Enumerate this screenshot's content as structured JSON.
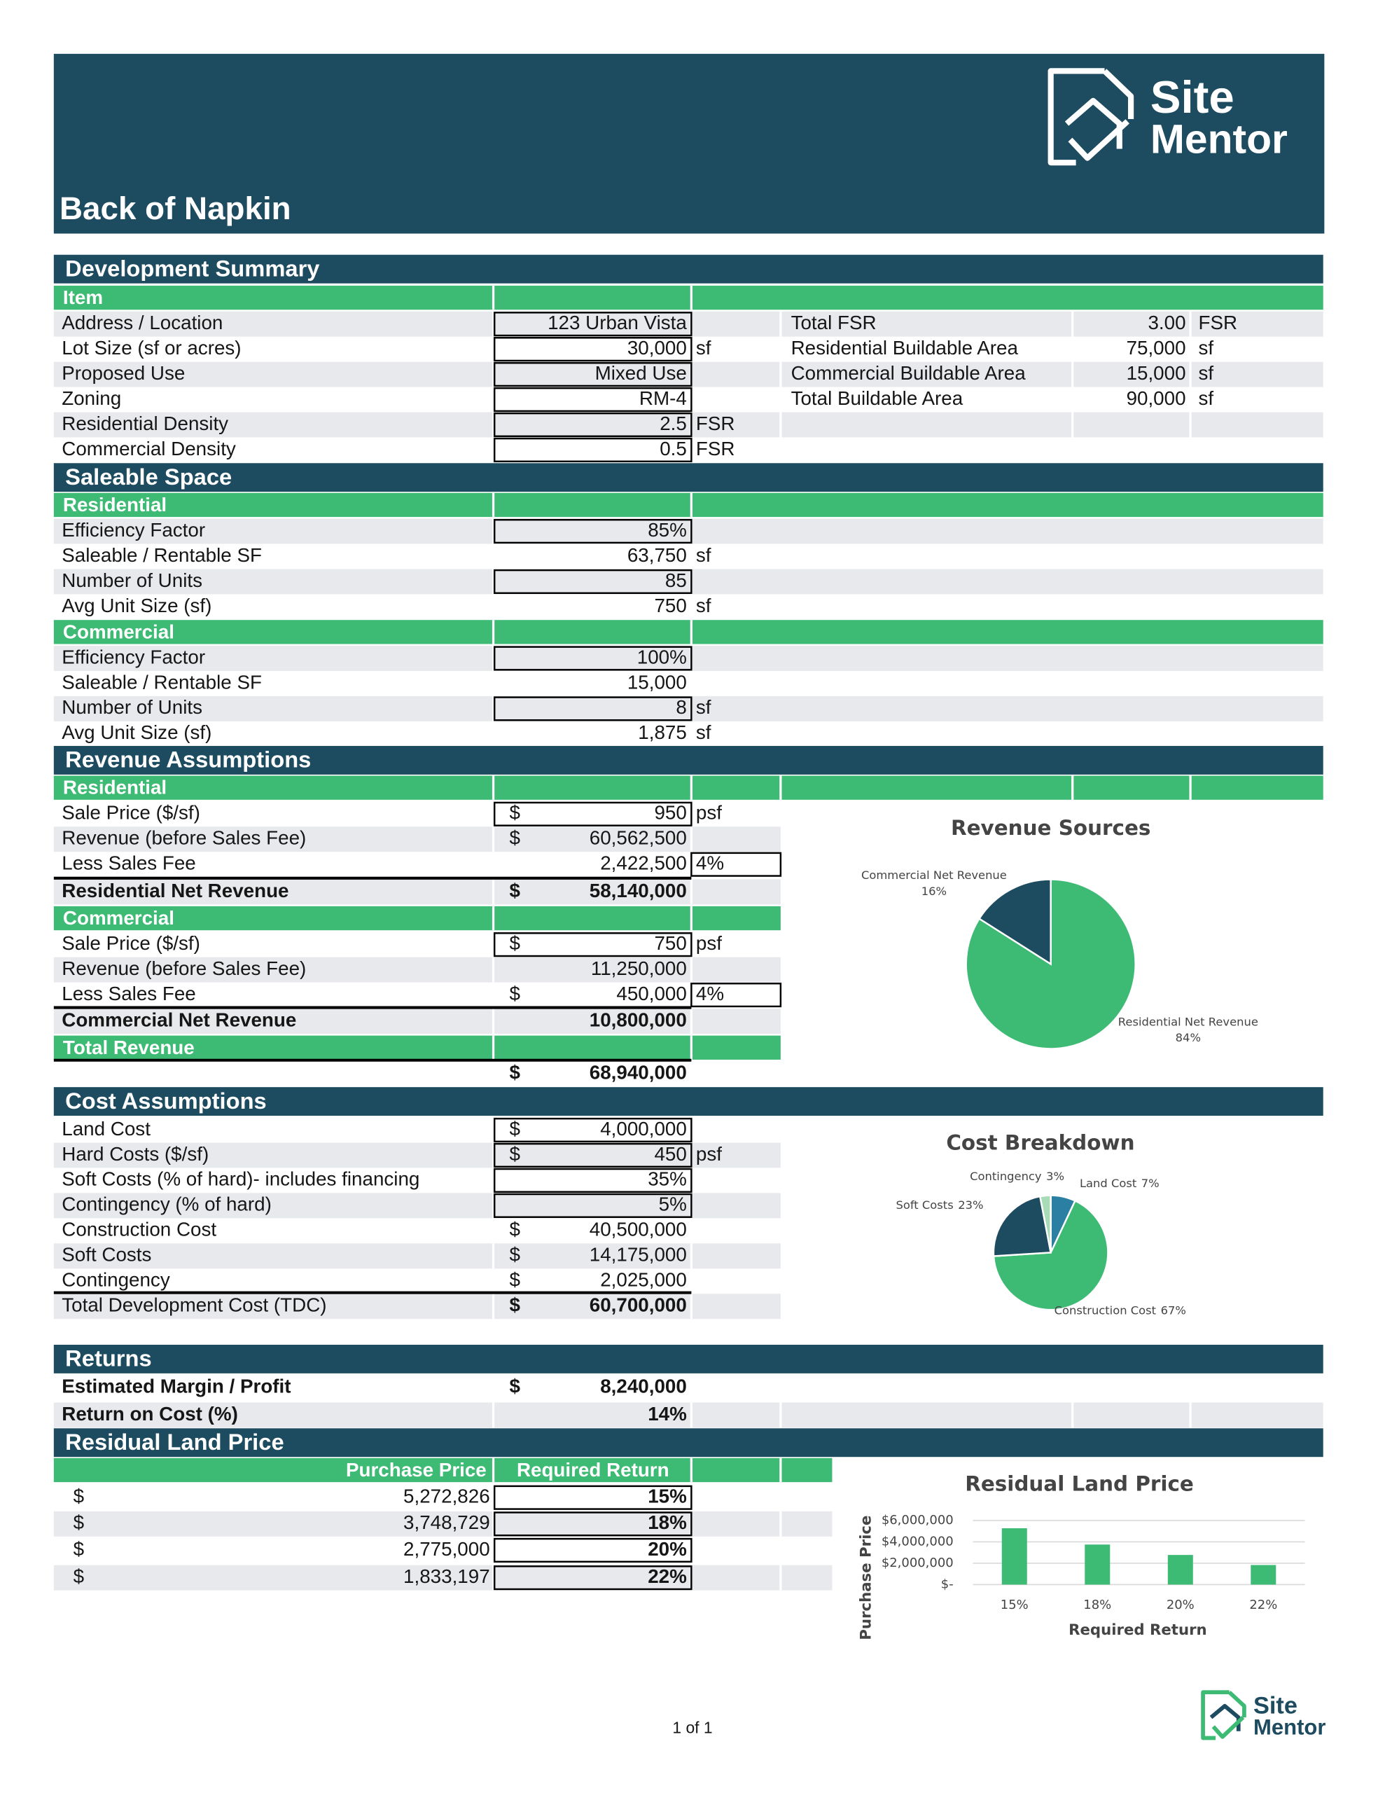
{
  "header": {
    "title": "Back of Napkin",
    "logo": [
      "Site",
      "Mentor"
    ]
  },
  "sections": [
    {
      "title": "Development Summary",
      "groups": [
        {
          "title": "Item",
          "rows": [
            {
              "label": "Address / Location",
              "value": "123 Urban Vista"
            },
            {
              "label": "Lot Size (sf or acres)",
              "value": "30,000",
              "unit": "sf"
            },
            {
              "label": "Proposed Use",
              "value": "Mixed Use"
            },
            {
              "label": "Zoning",
              "value": "RM-4"
            },
            {
              "label": "Residential Density",
              "value": "2.5",
              "unit": "FSR"
            },
            {
              "label": "Commercial Density",
              "value": "0.5",
              "unit": "FSR"
            }
          ]
        }
      ],
      "side": [
        {
          "label": "Total FSR",
          "value": "3.00",
          "unit": "FSR"
        },
        {
          "label": "Residential Buildable Area",
          "value": "75,000",
          "unit": "sf"
        },
        {
          "label": "Commercial Buildable Area",
          "value": "15,000",
          "unit": "sf"
        },
        {
          "label": "Total Buildable Area",
          "value": "90,000",
          "unit": "sf"
        }
      ]
    },
    {
      "title": "Saleable Space",
      "groups": [
        {
          "title": "Residential",
          "rows": [
            {
              "label": "Efficiency Factor",
              "value": "85%"
            },
            {
              "label": "Saleable / Rentable SF",
              "value": "63,750",
              "unit": "sf"
            },
            {
              "label": "Number of Units",
              "value": "85"
            },
            {
              "label": "Avg Unit Size (sf)",
              "value": "750",
              "unit": "sf"
            }
          ]
        },
        {
          "title": "Commercial",
          "rows": [
            {
              "label": "Efficiency Factor",
              "value": "100%"
            },
            {
              "label": "Saleable / Rentable SF",
              "value": "15,000"
            },
            {
              "label": "Number of Units",
              "value": "8",
              "unit": "sf"
            },
            {
              "label": "Avg Unit Size (sf)",
              "value": "1,875",
              "unit": "sf"
            }
          ]
        }
      ]
    },
    {
      "title": "Revenue Assumptions",
      "groups": [
        {
          "title": "Residential",
          "rows": [
            {
              "label": "Sale Price ($/sf)",
              "currency": "$",
              "value": "950",
              "unit": "psf"
            },
            {
              "label": "Revenue (before Sales Fee)",
              "currency": "$",
              "value": "60,562,500"
            },
            {
              "label": "Less Sales Fee",
              "value": "2,422,500",
              "unit": "4%"
            }
          ],
          "total": {
            "label": "Residential Net Revenue",
            "currency": "$",
            "value": "58,140,000"
          }
        },
        {
          "title": "Commercial",
          "rows": [
            {
              "label": "Sale Price ($/sf)",
              "currency": "$",
              "value": "750",
              "unit": "psf"
            },
            {
              "label": "Revenue (before Sales Fee)",
              "value": "11,250,000"
            },
            {
              "label": "Less Sales Fee",
              "currency": "$",
              "value": "450,000",
              "unit": "4%"
            }
          ],
          "total": {
            "label": "Commercial Net Revenue",
            "value": "10,800,000"
          }
        },
        {
          "title": "Total Revenue",
          "total": {
            "currency": "$",
            "value": "68,940,000"
          }
        }
      ]
    },
    {
      "title": "Cost Assumptions",
      "groups": [
        {
          "rows": [
            {
              "label": "Land Cost",
              "currency": "$",
              "value": "4,000,000"
            },
            {
              "label": "Hard Costs ($/sf)",
              "currency": "$",
              "value": "450",
              "unit": "psf"
            },
            {
              "label": "Soft Costs (% of hard)- includes financing",
              "value": "35%"
            },
            {
              "label": "Contingency (% of hard)",
              "value": "5%"
            },
            {
              "label": "Construction Cost",
              "currency": "$",
              "value": "40,500,000"
            },
            {
              "label": "Soft Costs",
              "currency": "$",
              "value": "14,175,000"
            },
            {
              "label": "Contingency",
              "currency": "$",
              "value": "2,025,000"
            }
          ],
          "total": {
            "label": "Total Development Cost (TDC)",
            "currency": "$",
            "value": "60,700,000"
          }
        }
      ]
    },
    {
      "title": "Returns",
      "groups": [
        {
          "rows": [
            {
              "label": "Estimated Margin / Profit",
              "currency": "$",
              "value": "8,240,000"
            },
            {
              "label": "Return on Cost (%)",
              "value": "14%"
            }
          ]
        }
      ]
    },
    {
      "title": "Residual Land Price",
      "table": {
        "columns": [
          "Purchase Price",
          "Required Return"
        ],
        "rows": [
          [
            "$",
            "5,272,826",
            "15%"
          ],
          [
            "$",
            "3,748,729",
            "18%"
          ],
          [
            "$",
            "2,775,000",
            "20%"
          ],
          [
            "$",
            "1,833,197",
            "22%"
          ]
        ]
      }
    }
  ],
  "chart_data": [
    {
      "type": "pie",
      "title": "Revenue Sources",
      "categories": [
        "Residential Net Revenue",
        "Commercial Net Revenue"
      ],
      "values": [
        84,
        16
      ],
      "value_labels": [
        "84%",
        "16%"
      ],
      "colors": [
        "#3dba74",
        "#1d4b5f"
      ]
    },
    {
      "type": "pie",
      "title": "Cost Breakdown",
      "categories": [
        "Land Cost",
        "Construction Cost",
        "Soft Costs",
        "Contingency"
      ],
      "values": [
        7,
        67,
        23,
        3
      ],
      "value_labels": [
        "7%",
        "67%",
        "23%",
        "3%"
      ],
      "colors": [
        "#2a7fa3",
        "#3dba74",
        "#1d4b5f",
        "#a8dcb8"
      ]
    },
    {
      "type": "bar",
      "title": "Residual Land Price",
      "categories": [
        "15%",
        "18%",
        "20%",
        "22%"
      ],
      "values": [
        5272826,
        3748729,
        2775000,
        1833197
      ],
      "color": "#3dba74",
      "ylim": [
        0,
        6000000
      ],
      "yticks": [
        {
          "value": 0,
          "label": "$-"
        },
        {
          "value": 2000000,
          "label": "$2,000,000"
        },
        {
          "value": 4000000,
          "label": "$4,000,000"
        },
        {
          "value": 6000000,
          "label": "$6,000,000"
        }
      ],
      "grid": true,
      "xlabel": "Required Return",
      "ylabel": "Purchase Price"
    }
  ],
  "footer": {
    "page": "1 of 1",
    "logo": [
      "Site",
      "Mentor"
    ]
  }
}
